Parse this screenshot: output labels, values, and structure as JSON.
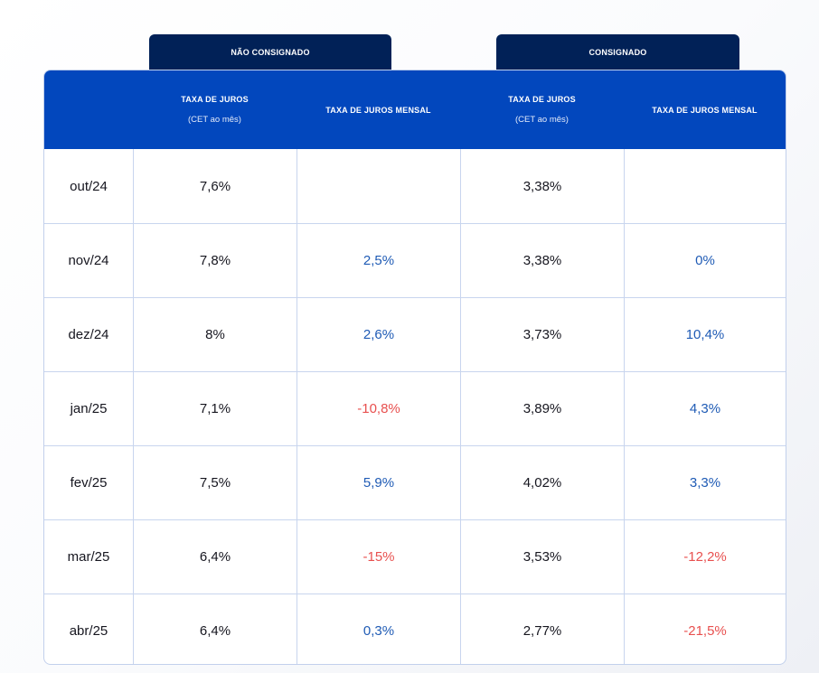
{
  "tabs": {
    "left": "NÃO CONSIGNADO",
    "right": "CONSIGNADO"
  },
  "headers": {
    "col1_title": "TAXA DE JUROS",
    "col1_sub": "(CET ao mês)",
    "col2_title": "TAXA DE JUROS MENSAL",
    "col3_title": "TAXA DE JUROS",
    "col3_sub": "(CET ao mês)",
    "col4_title": "TAXA DE JUROS MENSAL"
  },
  "colors": {
    "header_bg": "#0247bd",
    "tab_bg": "#012157",
    "positive": "#1f5bb5",
    "negative": "#e8504f"
  },
  "rows": [
    {
      "month": "out/24",
      "nc_rate": "7,6%",
      "nc_var": "",
      "nc_var_sign": "",
      "c_rate": "3,38%",
      "c_var": "",
      "c_var_sign": ""
    },
    {
      "month": "nov/24",
      "nc_rate": "7,8%",
      "nc_var": "2,5%",
      "nc_var_sign": "pos",
      "c_rate": "3,38%",
      "c_var": "0%",
      "c_var_sign": "pos"
    },
    {
      "month": "dez/24",
      "nc_rate": "8%",
      "nc_var": "2,6%",
      "nc_var_sign": "pos",
      "c_rate": "3,73%",
      "c_var": "10,4%",
      "c_var_sign": "pos"
    },
    {
      "month": "jan/25",
      "nc_rate": "7,1%",
      "nc_var": "-10,8%",
      "nc_var_sign": "neg",
      "c_rate": "3,89%",
      "c_var": "4,3%",
      "c_var_sign": "pos"
    },
    {
      "month": "fev/25",
      "nc_rate": "7,5%",
      "nc_var": "5,9%",
      "nc_var_sign": "pos",
      "c_rate": "4,02%",
      "c_var": "3,3%",
      "c_var_sign": "pos"
    },
    {
      "month": "mar/25",
      "nc_rate": "6,4%",
      "nc_var": "-15%",
      "nc_var_sign": "neg",
      "c_rate": "3,53%",
      "c_var": "-12,2%",
      "c_var_sign": "neg"
    },
    {
      "month": "abr/25",
      "nc_rate": "6,4%",
      "nc_var": "0,3%",
      "nc_var_sign": "pos",
      "c_rate": "2,77%",
      "c_var": "-21,5%",
      "c_var_sign": "neg"
    }
  ]
}
